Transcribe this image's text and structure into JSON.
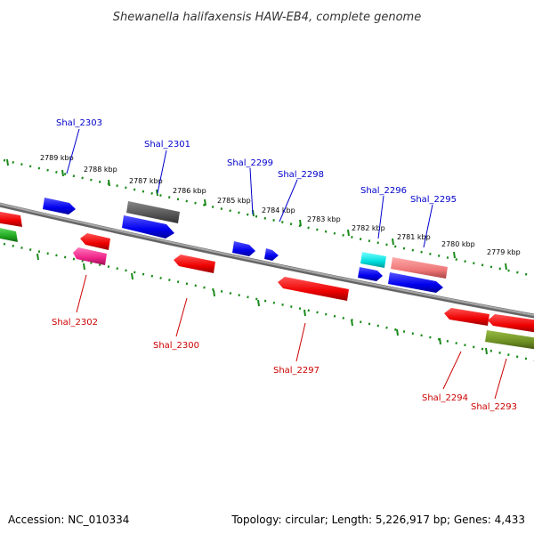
{
  "title": "Shewanella halifaxensis HAW-EB4, complete genome",
  "footer": {
    "accession": "Accession: NC_010334",
    "topology": "Topology: circular; Length: 5,226,917 bp; Genes: 4,433"
  },
  "colors": {
    "backbone": "#808080",
    "tick": "#1a8a1a",
    "forward_label": "#0000cc",
    "reverse_label": "#cc0000",
    "blue": "#0000ee",
    "red": "#ee0000",
    "pink": "#ee2288",
    "gray": "#555555",
    "cyan": "#00dddd",
    "salmon": "#ee7777",
    "olive": "#6b8e23",
    "green": "#22aa22"
  },
  "tick_labels": [
    "2789 kbp",
    "2788 kbp",
    "2787 kbp",
    "2786 kbp",
    "2785 kbp",
    "2784 kbp",
    "2783 kbp",
    "2782 kbp",
    "2781 kbp",
    "2780 kbp",
    "2779 kbp"
  ],
  "forward_genes": [
    "Shal_2303",
    "Shal_2301",
    "Shal_2299",
    "Shal_2298",
    "Shal_2296",
    "Shal_2295"
  ],
  "reverse_genes": [
    "Shal_2302",
    "Shal_2300",
    "Shal_2297",
    "Shal_2294",
    "Shal_2293"
  ]
}
